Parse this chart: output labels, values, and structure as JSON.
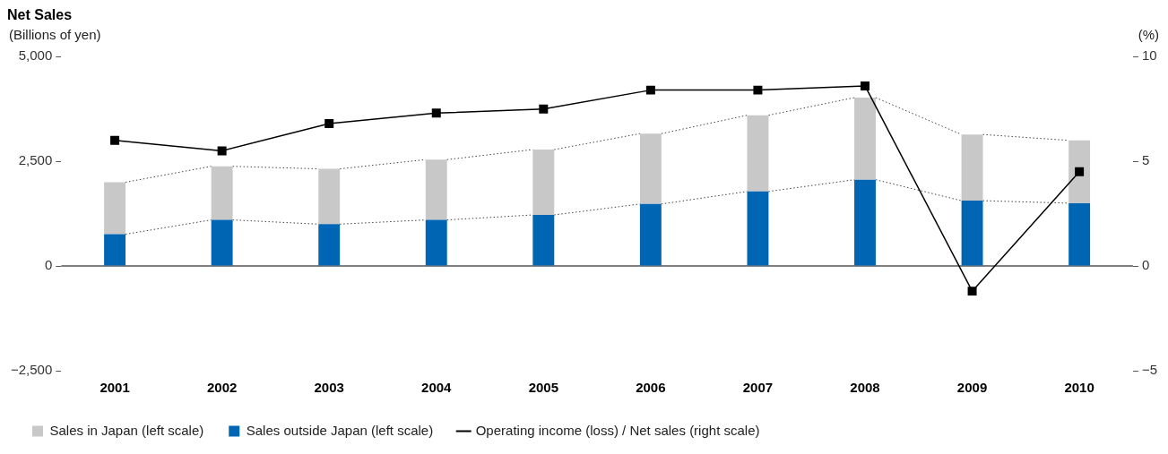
{
  "chart_data": {
    "type": "bar",
    "title": "Net Sales",
    "ylabel": "(Billions of yen)",
    "y2label": "(%)",
    "categories": [
      "2001",
      "2002",
      "2003",
      "2004",
      "2005",
      "2006",
      "2007",
      "2008",
      "2009",
      "2010"
    ],
    "stacked": true,
    "series": [
      {
        "name": "Sales outside Japan (left scale)",
        "color": "#0066b3",
        "values": [
          760,
          1100,
          1000,
          1100,
          1220,
          1480,
          1780,
          2060,
          1560,
          1500
        ]
      },
      {
        "name": "Sales in Japan (left scale)",
        "color": "#c8c8c8",
        "values": [
          1240,
          1280,
          1320,
          1440,
          1560,
          1680,
          1820,
          1960,
          1580,
          1500
        ]
      },
      {
        "name": "Operating income (loss) / Net sales (right scale)",
        "type": "line",
        "axis": "y2",
        "color": "#000000",
        "values": [
          6.0,
          5.5,
          6.8,
          7.3,
          7.5,
          8.4,
          8.4,
          8.6,
          -1.2,
          4.5
        ]
      }
    ],
    "ylim": [
      -2500,
      5000
    ],
    "yticks": [
      {
        "value": -2500,
        "label": "−2,500"
      },
      {
        "value": 0,
        "label": "0"
      },
      {
        "value": 2500,
        "label": "2,500"
      },
      {
        "value": 5000,
        "label": "5,000"
      }
    ],
    "y2lim": [
      -5,
      10
    ],
    "y2ticks": [
      {
        "value": -5,
        "label": "−5"
      },
      0,
      5,
      10
    ],
    "ref_lines": [
      {
        "axis": "y",
        "value": 0,
        "color": "#555555"
      }
    ],
    "marker": "square",
    "grid": false,
    "legend": "bottom left"
  }
}
